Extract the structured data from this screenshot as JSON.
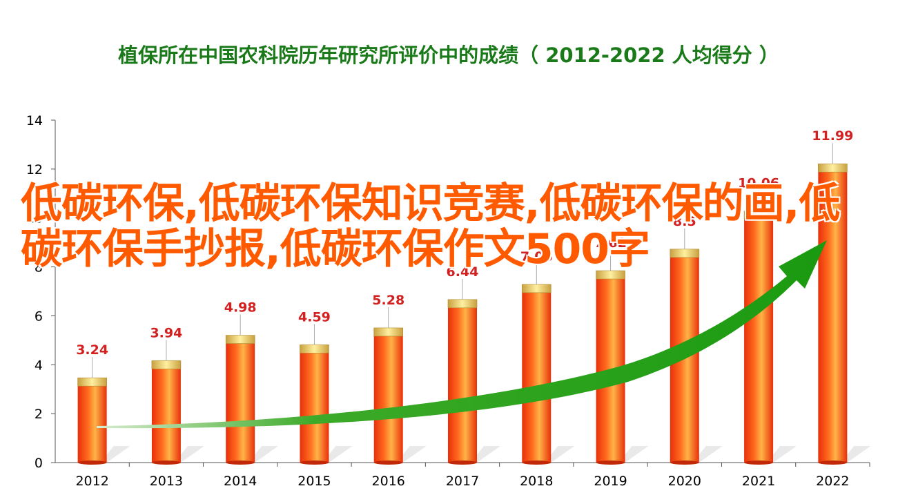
{
  "chart_data": {
    "type": "bar",
    "title": "植保所在中国农科院历年研究所评价中的成绩（ 2012-2022  人均得分 ）",
    "categories": [
      "2012",
      "2013",
      "2014",
      "2015",
      "2016",
      "2017",
      "2018",
      "2019",
      "2020",
      "2021",
      "2022"
    ],
    "values": [
      3.24,
      3.94,
      4.98,
      4.59,
      5.28,
      6.44,
      7.06,
      7.62,
      8.5,
      10.06,
      11.99
    ],
    "data_labels": [
      "3.24",
      "3.94",
      "4.98",
      "4.59",
      "5.28",
      "6.44",
      "7.06",
      "7.62",
      "8.5",
      "10.06",
      "11.99"
    ],
    "ylim": [
      0,
      14
    ],
    "yticks": [
      "0",
      "2",
      "4",
      "6",
      "8",
      "10",
      "12",
      "14"
    ],
    "xlabel": "",
    "ylabel": "",
    "grid": false,
    "colors": {
      "bar": "#ff4a1a",
      "bar_highlight": "#ffb347",
      "cap": "#e8c860",
      "label": "#d32020",
      "arrow": "#1e9e1e",
      "title": "#1a7a1a"
    }
  },
  "overlay": {
    "text": "低碳环保,低碳环保知识竞赛,低碳环保的画,低碳环保手抄报,低碳环保作文500字"
  }
}
